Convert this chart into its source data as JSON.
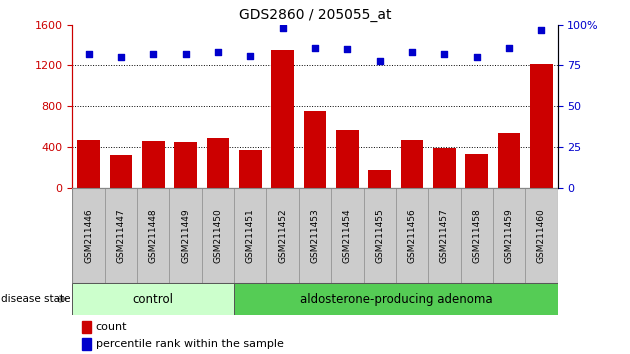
{
  "title": "GDS2860 / 205055_at",
  "categories": [
    "GSM211446",
    "GSM211447",
    "GSM211448",
    "GSM211449",
    "GSM211450",
    "GSM211451",
    "GSM211452",
    "GSM211453",
    "GSM211454",
    "GSM211455",
    "GSM211456",
    "GSM211457",
    "GSM211458",
    "GSM211459",
    "GSM211460"
  ],
  "counts": [
    470,
    320,
    455,
    450,
    490,
    370,
    1350,
    750,
    570,
    175,
    465,
    390,
    335,
    540,
    1210
  ],
  "percentiles": [
    82,
    80,
    82,
    82,
    83,
    81,
    98,
    86,
    85,
    78,
    83,
    82,
    80,
    86,
    97
  ],
  "ylim_left": [
    0,
    1600
  ],
  "ylim_right": [
    0,
    100
  ],
  "yticks_left": [
    0,
    400,
    800,
    1200,
    1600
  ],
  "yticks_right": [
    0,
    25,
    50,
    75,
    100
  ],
  "n_control": 5,
  "n_adenoma": 10,
  "bar_color": "#cc0000",
  "dot_color": "#0000cc",
  "control_color": "#ccffcc",
  "adenoma_color": "#55cc55",
  "bar_bg_color": "#cccccc",
  "grid_color": "#000000",
  "legend_count_color": "#cc0000",
  "legend_pct_color": "#0000cc",
  "bg_color": "#ffffff"
}
